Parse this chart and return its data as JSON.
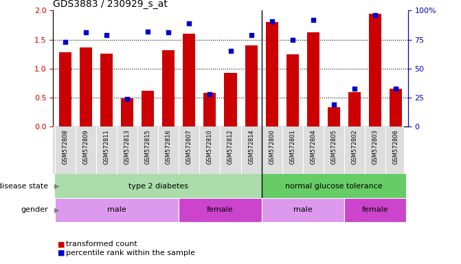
{
  "title": "GDS3883 / 230929_s_at",
  "samples": [
    "GSM572808",
    "GSM572809",
    "GSM572811",
    "GSM572813",
    "GSM572815",
    "GSM572816",
    "GSM572807",
    "GSM572810",
    "GSM572812",
    "GSM572814",
    "GSM572800",
    "GSM572801",
    "GSM572804",
    "GSM572805",
    "GSM572802",
    "GSM572803",
    "GSM572806"
  ],
  "bar_values": [
    1.28,
    1.37,
    1.26,
    0.49,
    0.62,
    1.32,
    1.6,
    0.58,
    0.93,
    1.4,
    1.8,
    1.25,
    1.62,
    0.34,
    0.6,
    1.95,
    0.65
  ],
  "dot_values": [
    73,
    81,
    79,
    24,
    82,
    81,
    89,
    28,
    65,
    79,
    91,
    75,
    92,
    19,
    33,
    96,
    33
  ],
  "bar_color": "#cc0000",
  "dot_color": "#0000cc",
  "ylim_left": [
    0,
    2
  ],
  "ylim_right": [
    0,
    100
  ],
  "yticks_left": [
    0,
    0.5,
    1.0,
    1.5,
    2.0
  ],
  "yticks_right": [
    0,
    25,
    50,
    75,
    100
  ],
  "gender_groups": [
    {
      "label": "male",
      "start": 0,
      "end": 5,
      "color": "#dd88ee"
    },
    {
      "label": "female",
      "start": 6,
      "end": 9,
      "color": "#cc44cc"
    },
    {
      "label": "male",
      "start": 10,
      "end": 13,
      "color": "#dd88ee"
    },
    {
      "label": "female",
      "start": 14,
      "end": 16,
      "color": "#cc44cc"
    }
  ],
  "disease_color_t2d": "#aaddaa",
  "disease_color_ngt": "#66cc66",
  "gender_male_color": "#dd99ee",
  "gender_female_color": "#cc44cc",
  "legend_labels": [
    "transformed count",
    "percentile rank within the sample"
  ],
  "label_disease_state": "disease state",
  "label_gender": "gender",
  "bg_xtick": "#dddddd"
}
